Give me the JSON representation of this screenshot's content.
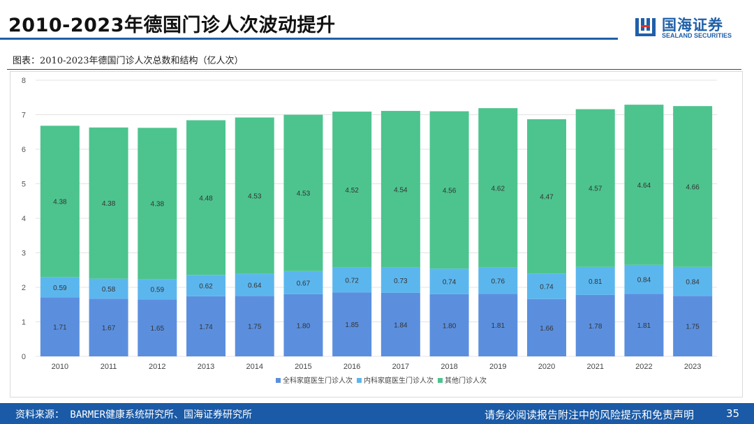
{
  "header": {
    "title": "2010-2023年德国门诊人次波动提升",
    "logo_cn": "国海证券",
    "logo_en": "SEALAND SECURITIES"
  },
  "chart_caption": "图表：2010-2023年德国门诊人次总数和结构（亿人次）",
  "chart_data": {
    "type": "bar",
    "stacked": true,
    "title": "2010-2023年德国门诊人次总数和结构（亿人次）",
    "categories": [
      "2010",
      "2011",
      "2012",
      "2013",
      "2014",
      "2015",
      "2016",
      "2017",
      "2018",
      "2019",
      "2020",
      "2021",
      "2022",
      "2023"
    ],
    "series": [
      {
        "name": "全科家庭医生门诊人次",
        "color": "#5b8fde",
        "values": [
          1.71,
          1.67,
          1.65,
          1.74,
          1.75,
          1.8,
          1.85,
          1.84,
          1.8,
          1.81,
          1.66,
          1.78,
          1.81,
          1.75
        ],
        "labels": [
          "1.71",
          "1.67",
          "1.65",
          "1.74",
          "1.75",
          "1.80",
          "1.85",
          "1.84",
          "1.80",
          "1.81",
          "1.66",
          "1.78",
          "1.81",
          "1.75"
        ]
      },
      {
        "name": "内科家庭医生门诊人次",
        "color": "#5cb6ee",
        "values": [
          0.59,
          0.58,
          0.59,
          0.62,
          0.64,
          0.67,
          0.72,
          0.73,
          0.74,
          0.76,
          0.74,
          0.81,
          0.84,
          0.84
        ],
        "labels": [
          "0.59",
          "0.58",
          "0.59",
          "0.62",
          "0.64",
          "0.67",
          "0.72",
          "0.73",
          "0.74",
          "0.76",
          "0.74",
          "0.81",
          "0.84",
          "0.84"
        ]
      },
      {
        "name": "其他门诊人次",
        "color": "#4dc48e",
        "values": [
          4.38,
          4.38,
          4.38,
          4.48,
          4.53,
          4.53,
          4.52,
          4.54,
          4.56,
          4.62,
          4.47,
          4.57,
          4.64,
          4.66
        ],
        "labels": [
          "4.38",
          "4.38",
          "4.38",
          "4.48",
          "4.53",
          "4.53",
          "4.52",
          "4.54",
          "4.56",
          "4.62",
          "4.47",
          "4.57",
          "4.64",
          "4.66"
        ]
      }
    ],
    "ylim": [
      0,
      8
    ],
    "yticks": [
      "0",
      "1",
      "2",
      "3",
      "4",
      "5",
      "6",
      "7",
      "8"
    ],
    "legend_position": "bottom",
    "grid": true,
    "xlabel": "",
    "ylabel": ""
  },
  "footer": {
    "source": "资料来源：  BARMER健康系统研究所、国海证券研究所",
    "disclaimer": "请务必阅读报告附注中的风险提示和免责声明",
    "page": "35"
  },
  "colors": {
    "brand_blue": "#1f5fa8",
    "footer_blue": "#1a5aa6",
    "gridline": "#e3e3e3"
  }
}
